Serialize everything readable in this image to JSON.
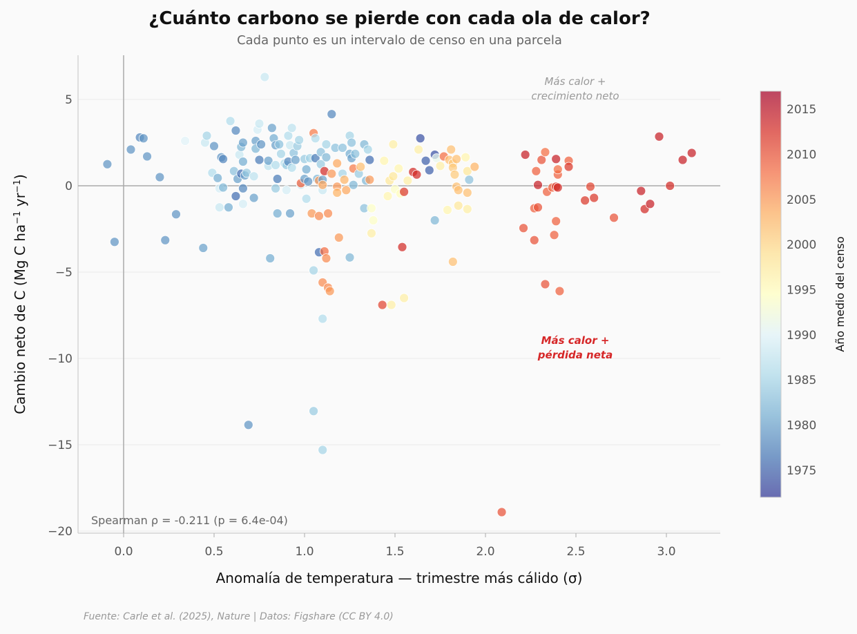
{
  "header": {
    "title": "¿Cuánto carbono se pierde con cada ola de calor?",
    "subtitle": "Cada punto es un intervalo de censo en una parcela"
  },
  "footer": {
    "source": "Fuente: Carle et al. (2025), Nature | Datos: Figshare (CC BY 4.0)"
  },
  "chart_data": {
    "type": "scatter",
    "title": "¿Cuánto carbono se pierde con cada ola de calor?",
    "subtitle": "Cada punto es un intervalo de censo en una parcela",
    "xlabel": "Anomalía de temperatura — trimestre más cálido (σ)",
    "ylabel": "Cambio neto de C (Mg C ha⁻¹ yr⁻¹)",
    "xlim": [
      -0.25,
      3.3
    ],
    "ylim": [
      -20.2,
      7.5
    ],
    "xticks": [
      0.0,
      0.5,
      1.0,
      1.5,
      2.0,
      2.5,
      3.0
    ],
    "xtick_labels": [
      "0.0",
      "0.5",
      "1.0",
      "1.5",
      "2.0",
      "2.5",
      "3.0"
    ],
    "yticks": [
      5,
      0,
      -5,
      -10,
      -15,
      -20
    ],
    "ytick_labels": [
      "5",
      "0",
      "−5",
      "−10",
      "−15",
      "−20"
    ],
    "grid": "horizontal",
    "reference_lines": {
      "x": 0,
      "y": 0
    },
    "colorbar": {
      "label": "Año medio del censo",
      "range": [
        1972,
        2017
      ],
      "ticks": [
        2015,
        2010,
        2005,
        2000,
        1995,
        1990,
        1985,
        1980,
        1975
      ],
      "colormap": "RdYlBu_r",
      "stops": [
        "#313695",
        "#4575b4",
        "#74add1",
        "#abd9e9",
        "#e0f3f8",
        "#ffffbf",
        "#fee090",
        "#fdae61",
        "#f46d43",
        "#d73027",
        "#a50026"
      ]
    },
    "annotations": [
      {
        "text": "Más calor +\ncrecimiento neto",
        "x": 2.5,
        "y": 5.6,
        "style": "gray-italic"
      },
      {
        "text": "Más calor +\npérdida neta",
        "x": 2.5,
        "y": -9.4,
        "style": "red-bold-italic"
      },
      {
        "text": "Spearman ρ = -0.211 (p = 6.4e-04)",
        "position": "bottom-left"
      }
    ],
    "stats": {
      "spearman_rho": -0.211,
      "p_value": "6.4e-04"
    },
    "points": [
      {
        "x": -0.09,
        "y": 1.25,
        "year": 1979
      },
      {
        "x": -0.05,
        "y": -3.25,
        "year": 1979
      },
      {
        "x": 0.04,
        "y": 2.1,
        "year": 1979
      },
      {
        "x": 0.09,
        "y": 2.8,
        "year": 1978
      },
      {
        "x": 0.11,
        "y": 2.75,
        "year": 1979
      },
      {
        "x": 0.13,
        "y": 1.7,
        "year": 1979
      },
      {
        "x": 0.2,
        "y": 0.5,
        "year": 1979
      },
      {
        "x": 0.23,
        "y": -3.15,
        "year": 1979
      },
      {
        "x": 0.29,
        "y": -1.65,
        "year": 1979
      },
      {
        "x": 0.34,
        "y": 2.6,
        "year": 1990
      },
      {
        "x": 0.44,
        "y": -3.6,
        "year": 1980
      },
      {
        "x": 0.45,
        "y": 2.5,
        "year": 1988
      },
      {
        "x": 0.46,
        "y": 2.9,
        "year": 1985
      },
      {
        "x": 0.49,
        "y": 0.75,
        "year": 1986
      },
      {
        "x": 0.5,
        "y": 2.3,
        "year": 1979
      },
      {
        "x": 0.52,
        "y": 0.45,
        "year": 1981
      },
      {
        "x": 0.53,
        "y": -1.25,
        "year": 1988
      },
      {
        "x": 0.53,
        "y": -0.15,
        "year": 1989
      },
      {
        "x": 0.54,
        "y": 1.65,
        "year": 1979
      },
      {
        "x": 0.55,
        "y": -0.1,
        "year": 1982
      },
      {
        "x": 0.55,
        "y": 1.55,
        "year": 1978
      },
      {
        "x": 0.58,
        "y": -1.25,
        "year": 1981
      },
      {
        "x": 0.59,
        "y": 3.75,
        "year": 1986
      },
      {
        "x": 0.61,
        "y": 0.85,
        "year": 1983
      },
      {
        "x": 0.62,
        "y": -0.6,
        "year": 1976
      },
      {
        "x": 0.62,
        "y": 3.2,
        "year": 1978
      },
      {
        "x": 0.63,
        "y": 0.4,
        "year": 1980
      },
      {
        "x": 0.64,
        "y": 1.8,
        "year": 1988
      },
      {
        "x": 0.65,
        "y": 0.7,
        "year": 1976
      },
      {
        "x": 0.65,
        "y": 2.25,
        "year": 1982
      },
      {
        "x": 0.66,
        "y": 2.5,
        "year": 1980
      },
      {
        "x": 0.66,
        "y": -0.15,
        "year": 1978
      },
      {
        "x": 0.66,
        "y": 1.4,
        "year": 1981
      },
      {
        "x": 0.66,
        "y": -1.05,
        "year": 1989
      },
      {
        "x": 0.67,
        "y": 0.6,
        "year": 1980
      },
      {
        "x": 0.68,
        "y": 0.75,
        "year": 1984
      },
      {
        "x": 0.69,
        "y": -13.85,
        "year": 1979
      },
      {
        "x": 0.72,
        "y": 0.55,
        "year": 1987
      },
      {
        "x": 0.72,
        "y": -0.7,
        "year": 1980
      },
      {
        "x": 0.73,
        "y": 2.6,
        "year": 1980
      },
      {
        "x": 0.73,
        "y": 2.15,
        "year": 1982
      },
      {
        "x": 0.74,
        "y": 3.25,
        "year": 1989
      },
      {
        "x": 0.75,
        "y": 3.6,
        "year": 1988
      },
      {
        "x": 0.75,
        "y": 1.5,
        "year": 1977
      },
      {
        "x": 0.76,
        "y": 2.4,
        "year": 1979
      },
      {
        "x": 0.78,
        "y": 6.3,
        "year": 1988
      },
      {
        "x": 0.8,
        "y": 1.15,
        "year": 1987
      },
      {
        "x": 0.8,
        "y": 1.45,
        "year": 1980
      },
      {
        "x": 0.81,
        "y": -4.2,
        "year": 1981
      },
      {
        "x": 0.82,
        "y": 3.35,
        "year": 1980
      },
      {
        "x": 0.83,
        "y": 2.75,
        "year": 1981
      },
      {
        "x": 0.84,
        "y": 1.2,
        "year": 1986
      },
      {
        "x": 0.84,
        "y": -0.15,
        "year": 1984
      },
      {
        "x": 0.84,
        "y": 2.35,
        "year": 1980
      },
      {
        "x": 0.85,
        "y": 0.4,
        "year": 1977
      },
      {
        "x": 0.85,
        "y": -1.6,
        "year": 1981
      },
      {
        "x": 0.86,
        "y": 2.4,
        "year": 1983
      },
      {
        "x": 0.87,
        "y": 1.85,
        "year": 1985
      },
      {
        "x": 0.89,
        "y": 1.3,
        "year": 1986
      },
      {
        "x": 0.9,
        "y": 1.2,
        "year": 1984
      },
      {
        "x": 0.9,
        "y": -0.25,
        "year": 1989
      },
      {
        "x": 0.91,
        "y": 2.9,
        "year": 1986
      },
      {
        "x": 0.91,
        "y": 1.4,
        "year": 1978
      },
      {
        "x": 0.92,
        "y": 2.35,
        "year": 1988
      },
      {
        "x": 0.92,
        "y": -1.6,
        "year": 1980
      },
      {
        "x": 0.93,
        "y": 3.35,
        "year": 1987
      },
      {
        "x": 0.93,
        "y": 1.05,
        "year": 1986
      },
      {
        "x": 0.94,
        "y": 1.9,
        "year": 1983
      },
      {
        "x": 0.95,
        "y": 1.5,
        "year": 1980
      },
      {
        "x": 0.96,
        "y": 2.3,
        "year": 1984
      },
      {
        "x": 0.97,
        "y": 2.65,
        "year": 1985
      },
      {
        "x": 0.98,
        "y": 0.05,
        "year": 1988
      },
      {
        "x": 0.98,
        "y": 0.15,
        "year": 2009
      },
      {
        "x": 1.0,
        "y": 1.55,
        "year": 1984
      },
      {
        "x": 1.0,
        "y": 0.4,
        "year": 1980
      },
      {
        "x": 1.01,
        "y": -0.75,
        "year": 1986
      },
      {
        "x": 1.01,
        "y": 0.95,
        "year": 1981
      },
      {
        "x": 1.02,
        "y": 0.25,
        "year": 1979
      },
      {
        "x": 1.03,
        "y": 1.6,
        "year": 1985
      },
      {
        "x": 1.04,
        "y": -1.6,
        "year": 2005
      },
      {
        "x": 1.05,
        "y": 3.05,
        "year": 2007
      },
      {
        "x": 1.05,
        "y": -13.05,
        "year": 1984
      },
      {
        "x": 1.05,
        "y": -4.9,
        "year": 1985
      },
      {
        "x": 1.06,
        "y": 1.6,
        "year": 1977
      },
      {
        "x": 1.06,
        "y": 2.75,
        "year": 1986
      },
      {
        "x": 1.07,
        "y": 0.4,
        "year": 1982
      },
      {
        "x": 1.08,
        "y": 0.3,
        "year": 2005
      },
      {
        "x": 1.08,
        "y": -1.75,
        "year": 2006
      },
      {
        "x": 1.08,
        "y": -3.85,
        "year": 1976
      },
      {
        "x": 1.09,
        "y": 1.95,
        "year": 1983
      },
      {
        "x": 1.09,
        "y": 1.25,
        "year": 1984
      },
      {
        "x": 1.1,
        "y": 0.35,
        "year": 1980
      },
      {
        "x": 1.1,
        "y": -0.25,
        "year": 1988
      },
      {
        "x": 1.1,
        "y": 0.05,
        "year": 2004
      },
      {
        "x": 1.1,
        "y": -7.7,
        "year": 1986
      },
      {
        "x": 1.1,
        "y": -5.6,
        "year": 2006
      },
      {
        "x": 1.1,
        "y": -15.3,
        "year": 1985
      },
      {
        "x": 1.11,
        "y": 0.85,
        "year": 2013
      },
      {
        "x": 1.11,
        "y": -3.8,
        "year": 2008
      },
      {
        "x": 1.12,
        "y": 1.65,
        "year": 1982
      },
      {
        "x": 1.12,
        "y": 2.4,
        "year": 1985
      },
      {
        "x": 1.12,
        "y": -4.2,
        "year": 2006
      },
      {
        "x": 1.13,
        "y": -5.9,
        "year": 2006
      },
      {
        "x": 1.13,
        "y": -1.6,
        "year": 2006
      },
      {
        "x": 1.14,
        "y": -6.1,
        "year": 2005
      },
      {
        "x": 1.15,
        "y": 4.15,
        "year": 1978
      },
      {
        "x": 1.15,
        "y": 0.7,
        "year": 2005
      },
      {
        "x": 1.17,
        "y": 2.2,
        "year": 1983
      },
      {
        "x": 1.18,
        "y": -0.05,
        "year": 2005
      },
      {
        "x": 1.18,
        "y": -0.4,
        "year": 2003
      },
      {
        "x": 1.18,
        "y": 1.3,
        "year": 2004
      },
      {
        "x": 1.19,
        "y": -3.0,
        "year": 2005
      },
      {
        "x": 1.21,
        "y": 2.2,
        "year": 1983
      },
      {
        "x": 1.21,
        "y": 0.7,
        "year": 1985
      },
      {
        "x": 1.22,
        "y": 0.35,
        "year": 2003
      },
      {
        "x": 1.23,
        "y": -0.25,
        "year": 2004
      },
      {
        "x": 1.25,
        "y": 2.9,
        "year": 1985
      },
      {
        "x": 1.25,
        "y": 1.85,
        "year": 1981
      },
      {
        "x": 1.25,
        "y": -4.15,
        "year": 1982
      },
      {
        "x": 1.26,
        "y": 2.5,
        "year": 1983
      },
      {
        "x": 1.26,
        "y": 1.6,
        "year": 1980
      },
      {
        "x": 1.27,
        "y": 1.0,
        "year": 2007
      },
      {
        "x": 1.27,
        "y": 0.05,
        "year": 1982
      },
      {
        "x": 1.28,
        "y": 1.85,
        "year": 1983
      },
      {
        "x": 1.3,
        "y": 0.7,
        "year": 1984
      },
      {
        "x": 1.31,
        "y": 1.1,
        "year": 2002
      },
      {
        "x": 1.33,
        "y": -1.3,
        "year": 1983
      },
      {
        "x": 1.33,
        "y": 2.4,
        "year": 1982
      },
      {
        "x": 1.34,
        "y": 0.3,
        "year": 1982
      },
      {
        "x": 1.35,
        "y": 2.1,
        "year": 1985
      },
      {
        "x": 1.36,
        "y": 1.5,
        "year": 1976
      },
      {
        "x": 1.36,
        "y": 0.35,
        "year": 2005
      },
      {
        "x": 1.37,
        "y": -2.75,
        "year": 1997
      },
      {
        "x": 1.37,
        "y": -1.3,
        "year": 1994
      },
      {
        "x": 1.38,
        "y": -2.0,
        "year": 1994
      },
      {
        "x": 1.43,
        "y": -6.9,
        "year": 2011
      },
      {
        "x": 1.44,
        "y": 1.45,
        "year": 1996
      },
      {
        "x": 1.46,
        "y": -0.6,
        "year": 1996
      },
      {
        "x": 1.47,
        "y": 0.3,
        "year": 1998
      },
      {
        "x": 1.48,
        "y": -6.9,
        "year": 1997
      },
      {
        "x": 1.49,
        "y": 2.4,
        "year": 1997
      },
      {
        "x": 1.49,
        "y": 0.55,
        "year": 1998
      },
      {
        "x": 1.5,
        "y": -0.2,
        "year": 1994
      },
      {
        "x": 1.52,
        "y": 1.0,
        "year": 1996
      },
      {
        "x": 1.53,
        "y": -0.45,
        "year": 1995
      },
      {
        "x": 1.54,
        "y": -3.55,
        "year": 2013
      },
      {
        "x": 1.55,
        "y": -0.35,
        "year": 2012
      },
      {
        "x": 1.55,
        "y": -6.5,
        "year": 1997
      },
      {
        "x": 1.57,
        "y": 0.3,
        "year": 1997
      },
      {
        "x": 1.6,
        "y": 0.8,
        "year": 2013
      },
      {
        "x": 1.62,
        "y": 0.65,
        "year": 2013
      },
      {
        "x": 1.63,
        "y": 2.1,
        "year": 1997
      },
      {
        "x": 1.64,
        "y": 2.75,
        "year": 1974
      },
      {
        "x": 1.67,
        "y": 1.45,
        "year": 1975
      },
      {
        "x": 1.69,
        "y": 0.9,
        "year": 1975
      },
      {
        "x": 1.72,
        "y": 1.8,
        "year": 1974
      },
      {
        "x": 1.72,
        "y": -2.0,
        "year": 1982
      },
      {
        "x": 1.73,
        "y": 1.6,
        "year": 1991
      },
      {
        "x": 1.75,
        "y": 1.15,
        "year": 1997
      },
      {
        "x": 1.77,
        "y": 1.7,
        "year": 2008
      },
      {
        "x": 1.79,
        "y": -1.4,
        "year": 1996
      },
      {
        "x": 1.8,
        "y": 1.5,
        "year": 2002
      },
      {
        "x": 1.81,
        "y": 2.1,
        "year": 2002
      },
      {
        "x": 1.82,
        "y": 1.3,
        "year": 2001
      },
      {
        "x": 1.82,
        "y": 1.05,
        "year": 2001
      },
      {
        "x": 1.82,
        "y": -4.4,
        "year": 2002
      },
      {
        "x": 1.83,
        "y": 0.65,
        "year": 2001
      },
      {
        "x": 1.84,
        "y": 1.55,
        "year": 2002
      },
      {
        "x": 1.84,
        "y": -0.05,
        "year": 2002
      },
      {
        "x": 1.85,
        "y": -1.15,
        "year": 1998
      },
      {
        "x": 1.85,
        "y": -0.25,
        "year": 2002
      },
      {
        "x": 1.89,
        "y": 1.65,
        "year": 1996
      },
      {
        "x": 1.9,
        "y": 0.85,
        "year": 1998
      },
      {
        "x": 1.9,
        "y": -0.4,
        "year": 2002
      },
      {
        "x": 1.9,
        "y": -1.35,
        "year": 1997
      },
      {
        "x": 1.91,
        "y": 0.35,
        "year": 1983
      },
      {
        "x": 1.94,
        "y": 1.1,
        "year": 2003
      },
      {
        "x": 2.09,
        "y": -18.9,
        "year": 2010
      },
      {
        "x": 2.21,
        "y": -2.45,
        "year": 2010
      },
      {
        "x": 2.22,
        "y": 1.8,
        "year": 2014
      },
      {
        "x": 2.27,
        "y": -1.3,
        "year": 2009
      },
      {
        "x": 2.27,
        "y": -3.15,
        "year": 2010
      },
      {
        "x": 2.28,
        "y": 0.85,
        "year": 2009
      },
      {
        "x": 2.29,
        "y": 0.05,
        "year": 2014
      },
      {
        "x": 2.29,
        "y": -1.25,
        "year": 2010
      },
      {
        "x": 2.31,
        "y": 1.5,
        "year": 2010
      },
      {
        "x": 2.33,
        "y": 1.95,
        "year": 2008
      },
      {
        "x": 2.33,
        "y": -5.7,
        "year": 2010
      },
      {
        "x": 2.34,
        "y": -0.35,
        "year": 2009
      },
      {
        "x": 2.37,
        "y": -0.1,
        "year": 2009
      },
      {
        "x": 2.38,
        "y": -2.85,
        "year": 2009
      },
      {
        "x": 2.39,
        "y": 1.55,
        "year": 2014
      },
      {
        "x": 2.39,
        "y": -0.05,
        "year": 2012
      },
      {
        "x": 2.39,
        "y": -2.05,
        "year": 2009
      },
      {
        "x": 2.4,
        "y": 0.65,
        "year": 2009
      },
      {
        "x": 2.4,
        "y": 0.95,
        "year": 2008
      },
      {
        "x": 2.4,
        "y": -0.1,
        "year": 2013
      },
      {
        "x": 2.41,
        "y": -6.1,
        "year": 2009
      },
      {
        "x": 2.46,
        "y": 1.45,
        "year": 2009
      },
      {
        "x": 2.46,
        "y": 1.1,
        "year": 2012
      },
      {
        "x": 2.55,
        "y": -0.85,
        "year": 2012
      },
      {
        "x": 2.58,
        "y": -0.05,
        "year": 2011
      },
      {
        "x": 2.6,
        "y": -0.7,
        "year": 2012
      },
      {
        "x": 2.71,
        "y": -1.85,
        "year": 2010
      },
      {
        "x": 2.86,
        "y": -0.3,
        "year": 2014
      },
      {
        "x": 2.88,
        "y": -1.35,
        "year": 2013
      },
      {
        "x": 2.91,
        "y": -1.05,
        "year": 2014
      },
      {
        "x": 2.96,
        "y": 2.85,
        "year": 2014
      },
      {
        "x": 3.02,
        "y": 0.0,
        "year": 2013
      },
      {
        "x": 3.09,
        "y": 1.5,
        "year": 2014
      },
      {
        "x": 3.14,
        "y": 1.9,
        "year": 2014
      }
    ]
  }
}
